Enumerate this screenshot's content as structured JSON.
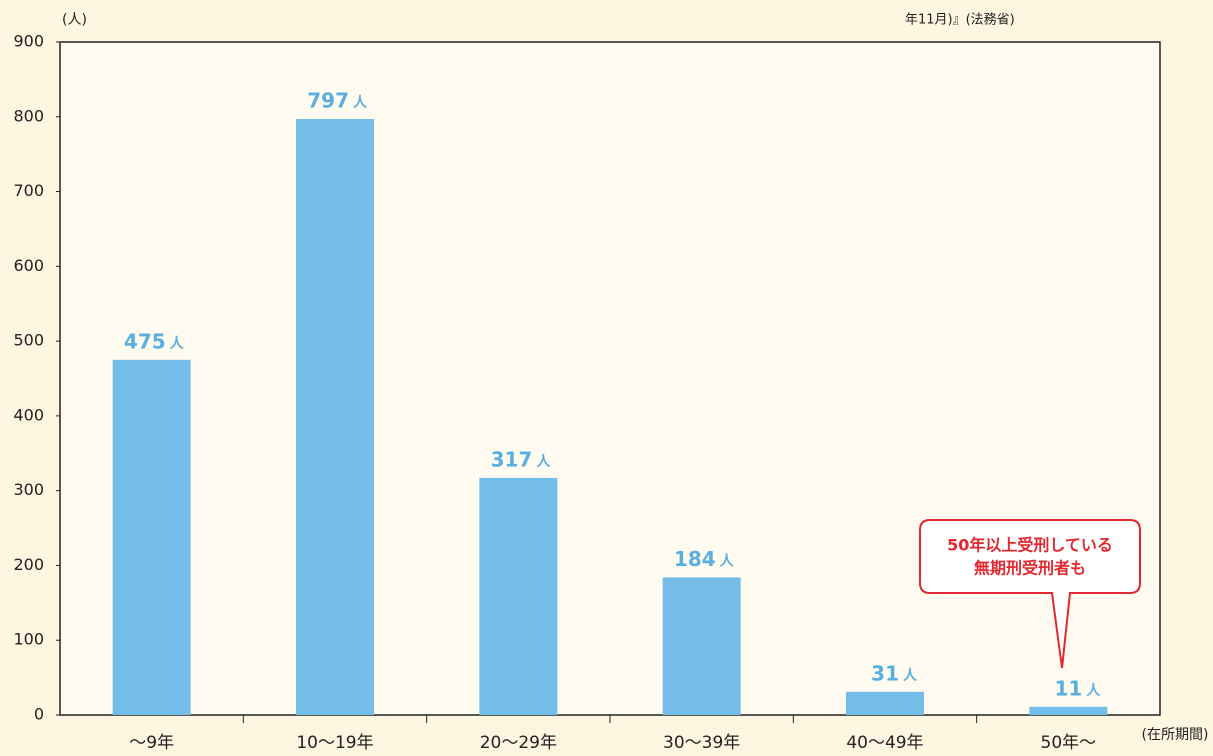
{
  "chart_data": {
    "type": "bar",
    "y_axis_label": "(人)",
    "x_axis_label": "(在所期間)",
    "source_note": "年11月)』(法務省)",
    "categories": [
      "〜9年",
      "10〜19年",
      "20〜29年",
      "30〜39年",
      "40〜49年",
      "50年〜"
    ],
    "values": [
      475,
      797,
      317,
      184,
      31,
      11
    ],
    "value_unit": "人",
    "color": "#74bde9",
    "label_color": "#5aaee0",
    "ylim": [
      0,
      900
    ],
    "yticks": [
      0,
      100,
      200,
      300,
      400,
      500,
      600,
      700,
      800,
      900
    ],
    "grid": false,
    "annotation": [
      "50年以上受刑している",
      "無期刑受刑者も"
    ]
  }
}
